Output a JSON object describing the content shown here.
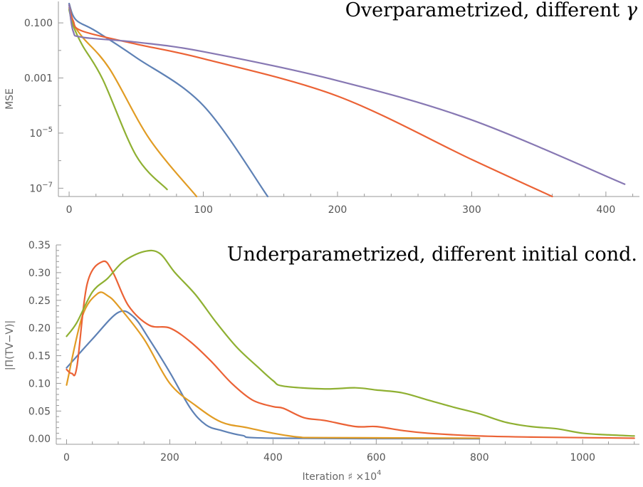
{
  "chart_data": [
    {
      "type": "line",
      "title": "Overparametrized, different γ",
      "xlabel": "",
      "ylabel": "MSE",
      "xlim": [
        -8,
        425
      ],
      "ylim": [
        5e-08,
        0.6
      ],
      "yscale": "log",
      "grid": false,
      "legend": "none",
      "x_ticks": [
        "0",
        "100",
        "200",
        "300",
        "400"
      ],
      "y_ticks": [
        {
          "value": 0.1,
          "label": "0.100"
        },
        {
          "value": 0.001,
          "label": "0.001"
        },
        {
          "value": 1e-05,
          "label": "10",
          "exp": "−5"
        },
        {
          "value": 1e-07,
          "label": "10",
          "exp": "−7"
        }
      ],
      "series": [
        {
          "color": "#5E81B5",
          "x": [
            0,
            5,
            20,
            50,
            100,
            148
          ],
          "y": [
            0.5,
            0.13,
            0.05,
            0.0055,
            0.0001,
            4.5e-08
          ]
        },
        {
          "color": "#E19C24",
          "x": [
            0,
            3,
            10,
            30,
            60,
            95
          ],
          "y": [
            0.35,
            0.1,
            0.03,
            0.0022,
            6e-06,
            5e-08
          ]
        },
        {
          "color": "#8FB032",
          "x": [
            0,
            3,
            10,
            25,
            50,
            73
          ],
          "y": [
            0.3,
            0.08,
            0.015,
            0.0009,
            1.5e-06,
            9e-08
          ]
        },
        {
          "color": "#EB6235",
          "x": [
            0,
            3,
            10,
            50,
            100,
            200,
            300,
            360
          ],
          "y": [
            0.45,
            0.12,
            0.05,
            0.017,
            0.005,
            0.00022,
            1.1e-06,
            5e-08
          ]
        },
        {
          "color": "#8778B3",
          "x": [
            0,
            3,
            10,
            50,
            100,
            200,
            300,
            414
          ],
          "y": [
            0.45,
            0.05,
            0.03,
            0.02,
            0.009,
            0.0008,
            3e-05,
            1.4e-07
          ]
        }
      ]
    },
    {
      "type": "line",
      "title": "Underparametrized, different initial cond.",
      "xlabel": "Iteration ♯ ×10",
      "xlabel_exp": "4",
      "ylabel": "|Π(TV−V)|",
      "xlim": [
        -20,
        1110
      ],
      "ylim": [
        -0.01,
        0.35
      ],
      "grid": false,
      "legend": "none",
      "x_ticks": [
        "0",
        "200",
        "400",
        "600",
        "800",
        "1000"
      ],
      "y_ticks": [
        "0.00",
        "0.05",
        "0.10",
        "0.15",
        "0.20",
        "0.25",
        "0.30",
        "0.35"
      ],
      "series": [
        {
          "color": "#5E81B5",
          "x": [
            0,
            50,
            100,
            130,
            160,
            200,
            240,
            270,
            300,
            340,
            400,
            800
          ],
          "y": [
            0.128,
            0.18,
            0.228,
            0.22,
            0.18,
            0.12,
            0.055,
            0.025,
            0.015,
            0.006,
            0.001,
            0.0
          ]
        },
        {
          "color": "#E19C24",
          "x": [
            0,
            30,
            60,
            80,
            100,
            150,
            200,
            250,
            300,
            350,
            400,
            450,
            500,
            800
          ],
          "y": [
            0.097,
            0.22,
            0.262,
            0.258,
            0.24,
            0.18,
            0.1,
            0.06,
            0.03,
            0.02,
            0.01,
            0.003,
            0.002,
            0.001
          ]
        },
        {
          "color": "#EB6235",
          "x": [
            0,
            10,
            20,
            40,
            70,
            90,
            120,
            160,
            200,
            240,
            280,
            320,
            360,
            400,
            420,
            460,
            500,
            560,
            600,
            650,
            700,
            800,
            900,
            1000,
            1100
          ],
          "y": [
            0.125,
            0.118,
            0.13,
            0.28,
            0.32,
            0.3,
            0.24,
            0.205,
            0.2,
            0.175,
            0.14,
            0.1,
            0.07,
            0.058,
            0.055,
            0.038,
            0.033,
            0.022,
            0.022,
            0.015,
            0.01,
            0.005,
            0.003,
            0.002,
            0.001
          ]
        },
        {
          "color": "#8FB032",
          "x": [
            0,
            20,
            50,
            80,
            110,
            150,
            180,
            210,
            250,
            290,
            330,
            370,
            400,
            420,
            500,
            560,
            600,
            650,
            700,
            750,
            800,
            850,
            900,
            950,
            1000,
            1050,
            1100
          ],
          "y": [
            0.185,
            0.21,
            0.265,
            0.29,
            0.32,
            0.338,
            0.335,
            0.3,
            0.26,
            0.21,
            0.165,
            0.13,
            0.105,
            0.095,
            0.09,
            0.092,
            0.088,
            0.083,
            0.07,
            0.057,
            0.045,
            0.03,
            0.022,
            0.018,
            0.01,
            0.007,
            0.005
          ]
        }
      ]
    }
  ]
}
